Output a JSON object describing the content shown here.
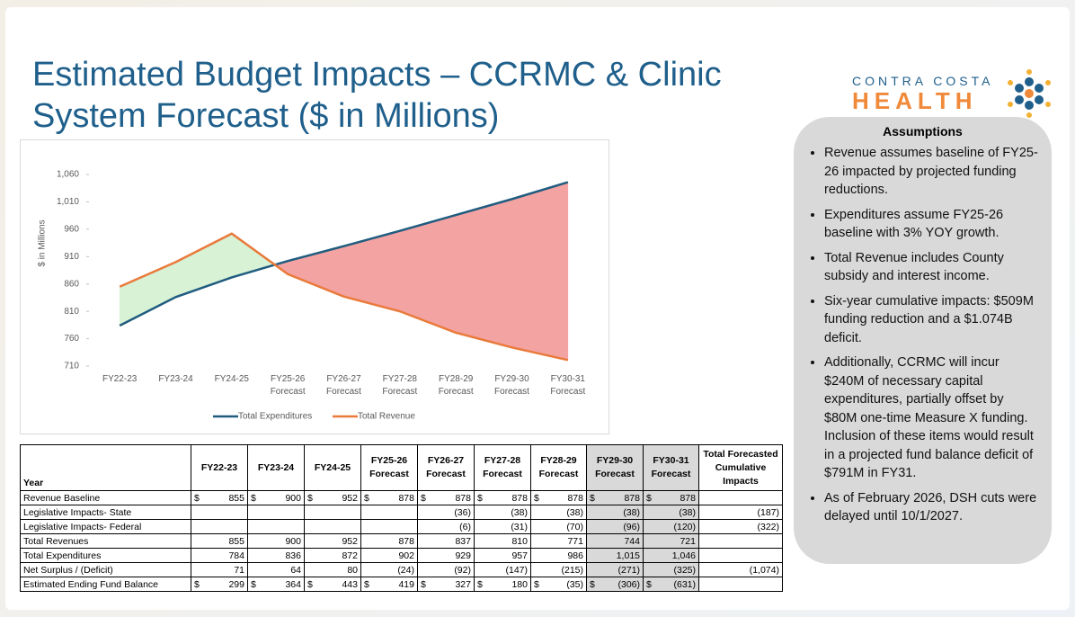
{
  "header": {
    "title": "Estimated Budget Impacts – CCRMC & Clinic System Forecast ($ in Millions)"
  },
  "logo": {
    "line1": "CONTRA COSTA",
    "line2": "HEALTH"
  },
  "chart_data": {
    "type": "line",
    "ylabel": "$ in Millions",
    "categories": [
      "FY22-23",
      "FY23-24",
      "FY24-25",
      "FY25-26 Forecast",
      "FY26-27 Forecast",
      "FY27-28 Forecast",
      "FY28-29 Forecast",
      "FY29-30 Forecast",
      "FY30-31 Forecast"
    ],
    "series": [
      {
        "name": "Total Expenditures",
        "color": "#1f5c7f",
        "values": [
          784,
          836,
          872,
          902,
          929,
          957,
          986,
          1015,
          1046
        ]
      },
      {
        "name": "Total Revenue",
        "color": "#e97a3b",
        "values": [
          855,
          900,
          952,
          878,
          837,
          810,
          771,
          744,
          721
        ]
      }
    ],
    "surplus_color": "#d8f2d6",
    "deficit_color": "#f4a3a3",
    "ylim": [
      710,
      1060
    ],
    "yticks": [
      710,
      760,
      810,
      860,
      910,
      960,
      {
        "value": 1010,
        "label": "1,010"
      },
      {
        "value": 1060,
        "label": "1,060"
      }
    ],
    "grid": false,
    "legend": "bottom"
  },
  "table": {
    "columns": [
      "Year",
      "FY22-23",
      "FY23-24",
      "FY24-25",
      "FY25-26 Forecast",
      "FY26-27 Forecast",
      "FY27-28 Forecast",
      "FY28-29 Forecast",
      "FY29-30 Forecast",
      "FY30-31 Forecast",
      "Total Forecasted Cumulative Impacts"
    ],
    "rows": [
      {
        "label": "Revenue Baseline",
        "currency": "$",
        "cells": [
          "855",
          "900",
          "952",
          "878",
          "878",
          "878",
          "878",
          "878",
          "878",
          null
        ]
      },
      {
        "label": "Legislative Impacts- State",
        "cells": [
          null,
          null,
          null,
          null,
          "(36)",
          "(38)",
          "(38)",
          "(38)",
          "(38)",
          "(187)"
        ]
      },
      {
        "label": "Legislative Impacts- Federal",
        "cells": [
          null,
          null,
          null,
          null,
          "(6)",
          "(31)",
          "(70)",
          "(96)",
          "(120)",
          "(322)"
        ]
      },
      {
        "label": "Total Revenues",
        "cells": [
          "855",
          "900",
          "952",
          "878",
          "837",
          "810",
          "771",
          "744",
          "721",
          null
        ]
      },
      {
        "label": "Total Expenditures",
        "cells": [
          "784",
          "836",
          "872",
          "902",
          "929",
          "957",
          "986",
          "1,015",
          "1,046",
          null
        ]
      },
      {
        "label": "Net Surplus / (Deficit)",
        "cells": [
          "71",
          "64",
          "80",
          "(24)",
          "(92)",
          "(147)",
          "(215)",
          "(271)",
          "(325)",
          "(1,074)"
        ]
      },
      {
        "label": "Estimated Ending Fund Balance",
        "currency": "$",
        "cells": [
          "299",
          "364",
          "443",
          "419",
          "327",
          "180",
          "(35)",
          "(306)",
          "(631)",
          null
        ]
      }
    ]
  },
  "assumptions": {
    "title": "Assumptions",
    "items": [
      "Revenue assumes baseline of FY25-26 impacted by projected funding reductions.",
      "Expenditures assume FY25-26 baseline with 3% YOY growth.",
      "Total Revenue includes County subsidy and interest income.",
      "Six-year cumulative impacts: $509M funding reduction and a $1.074B deficit.",
      "Additionally, CCRMC will incur $240M of necessary capital expenditures, partially offset by $80M one-time Measure X funding. Inclusion of these items would result in a projected fund balance deficit of $791M in FY31.",
      "As of February 2026, DSH cuts were delayed until 10/1/2027."
    ]
  }
}
